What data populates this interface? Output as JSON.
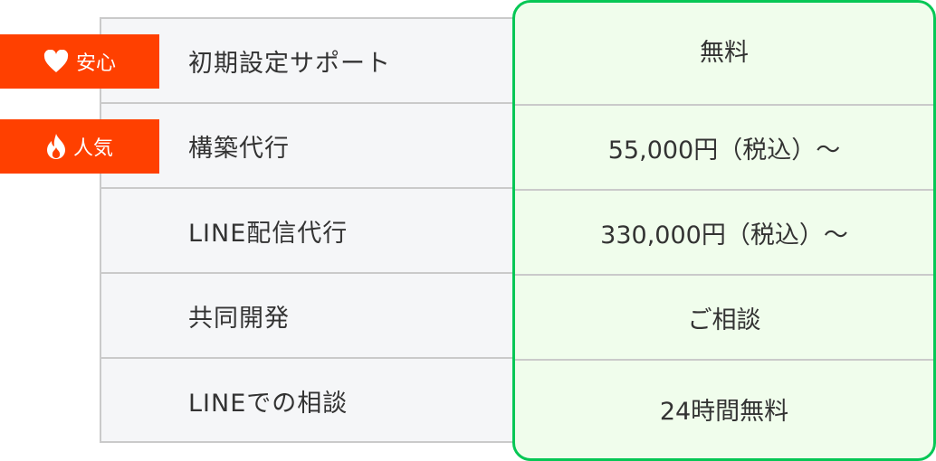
{
  "colors": {
    "accent": "#06c755",
    "badge": "#ff4000",
    "highlight_bg": "#f0fdec"
  },
  "badges": [
    {
      "icon": "heart-icon",
      "label": "安心"
    },
    {
      "icon": "fire-icon",
      "label": "人気"
    }
  ],
  "rows": [
    {
      "service": "初期設定サポート",
      "price": "無料"
    },
    {
      "service": "構築代行",
      "price": "55,000円（税込）〜"
    },
    {
      "service": "LINE配信代行",
      "price": "330,000円（税込）〜"
    },
    {
      "service": "共同開発",
      "price": "ご相談"
    },
    {
      "service": "LINEでの相談",
      "price": "24時間無料"
    }
  ]
}
